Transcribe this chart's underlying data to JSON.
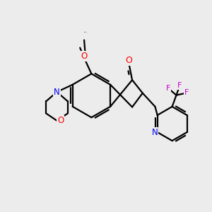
{
  "bg_color": "#ececec",
  "bond_color": "#000000",
  "bond_width": 1.6,
  "atom_colors": {
    "O": "#ff0000",
    "N": "#0000ee",
    "F": "#cc00cc",
    "C": "#000000"
  },
  "figsize": [
    3.0,
    3.0
  ],
  "dpi": 100,
  "xlim": [
    0,
    10
  ],
  "ylim": [
    0,
    10
  ]
}
